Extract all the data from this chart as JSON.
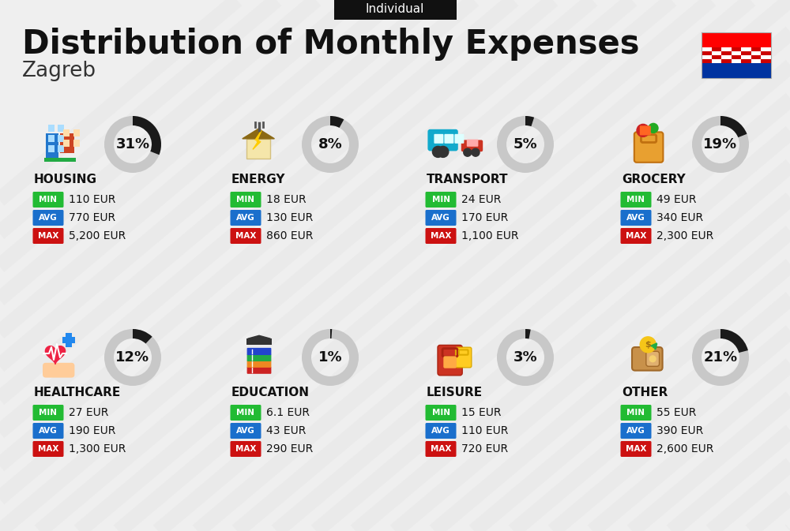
{
  "title": "Distribution of Monthly Expenses",
  "subtitle": "Individual",
  "city": "Zagreb",
  "bg_color": "#efefef",
  "categories": [
    {
      "name": "HOUSING",
      "percent": 31,
      "min_val": "110 EUR",
      "avg_val": "770 EUR",
      "max_val": "5,200 EUR",
      "row": 0,
      "col": 0
    },
    {
      "name": "ENERGY",
      "percent": 8,
      "min_val": "18 EUR",
      "avg_val": "130 EUR",
      "max_val": "860 EUR",
      "row": 0,
      "col": 1
    },
    {
      "name": "TRANSPORT",
      "percent": 5,
      "min_val": "24 EUR",
      "avg_val": "170 EUR",
      "max_val": "1,100 EUR",
      "row": 0,
      "col": 2
    },
    {
      "name": "GROCERY",
      "percent": 19,
      "min_val": "49 EUR",
      "avg_val": "340 EUR",
      "max_val": "2,300 EUR",
      "row": 0,
      "col": 3
    },
    {
      "name": "HEALTHCARE",
      "percent": 12,
      "min_val": "27 EUR",
      "avg_val": "190 EUR",
      "max_val": "1,300 EUR",
      "row": 1,
      "col": 0
    },
    {
      "name": "EDUCATION",
      "percent": 1,
      "min_val": "6.1 EUR",
      "avg_val": "43 EUR",
      "max_val": "290 EUR",
      "row": 1,
      "col": 1
    },
    {
      "name": "LEISURE",
      "percent": 3,
      "min_val": "15 EUR",
      "avg_val": "110 EUR",
      "max_val": "720 EUR",
      "row": 1,
      "col": 2
    },
    {
      "name": "OTHER",
      "percent": 21,
      "min_val": "55 EUR",
      "avg_val": "390 EUR",
      "max_val": "2,600 EUR",
      "row": 1,
      "col": 3
    }
  ],
  "min_color": "#22bb33",
  "avg_color": "#1a6fcc",
  "max_color": "#cc1111",
  "label_color": "#ffffff",
  "title_color": "#111111",
  "city_color": "#333333",
  "subtitle_bg": "#111111",
  "subtitle_text": "#ffffff",
  "donut_filled": "#1a1a1a",
  "donut_empty": "#c8c8c8",
  "stripe_color": "#e0e0e0",
  "flag_red": "#FF0000",
  "flag_white": "#FFFFFF",
  "flag_blue": "#0033A0",
  "check_red": "#CC0000"
}
